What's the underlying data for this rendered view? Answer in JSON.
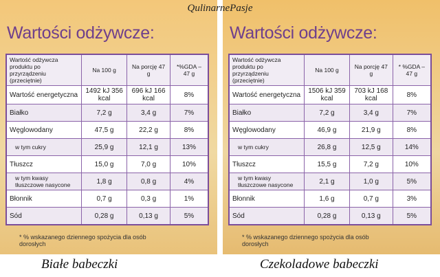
{
  "watermark": "QulinarnePasje",
  "panels": [
    {
      "heading": "Wartości odżywcze:",
      "table": {
        "header": [
          "Wartość odżywcza produktu po przyrządzeniu (przeciętnie)",
          "Na 100 g",
          "Na porcję 47 g",
          "*%GDA – 47 g"
        ],
        "rows": [
          [
            "Wartość energetyczna",
            "1492 kJ 356 kcal",
            "696 kJ 166 kcal",
            "8%"
          ],
          [
            "Białko",
            "7,2 g",
            "3,4 g",
            "7%"
          ],
          [
            "Węglowodany",
            "47,5 g",
            "22,2 g",
            "8%"
          ],
          [
            "w tym cukry",
            "25,9 g",
            "12,1 g",
            "13%"
          ],
          [
            "Tłuszcz",
            "15,0 g",
            "7,0 g",
            "10%"
          ],
          [
            "w tym kwasy tłuszczowe nasycone",
            "1,8 g",
            "0,8 g",
            "4%"
          ],
          [
            "Błonnik",
            "0,7 g",
            "0,3 g",
            "1%"
          ],
          [
            "Sód",
            "0,28 g",
            "0,13 g",
            "5%"
          ]
        ]
      },
      "footnote": "* % wskazanego dziennego spożycia dla osób dorosłych",
      "caption": "Białe babeczki"
    },
    {
      "heading": "Wartości odżywcze:",
      "table": {
        "header": [
          "Wartość odżywcza produktu po przyrządzeniu (przeciętnie)",
          "Na 100 g",
          "Na porcję 47 g",
          "* %GDA – 47 g"
        ],
        "rows": [
          [
            "Wartość energetyczna",
            "1506 kJ 359 kcal",
            "703 kJ 168 kcal",
            "8%"
          ],
          [
            "Białko",
            "7,2 g",
            "3,4 g",
            "7%"
          ],
          [
            "Węglowodany",
            "46,9 g",
            "21,9 g",
            "8%"
          ],
          [
            "w tym cukry",
            "26,8 g",
            "12,5 g",
            "14%"
          ],
          [
            "Tłuszcz",
            "15,5 g",
            "7,2 g",
            "10%"
          ],
          [
            "w tym kwasy tłuszczowe nasycone",
            "2,1 g",
            "1,0 g",
            "5%"
          ],
          [
            "Błonnik",
            "1,6 g",
            "0,7 g",
            "3%"
          ],
          [
            "Sód",
            "0,28 g",
            "0,13 g",
            "5%"
          ]
        ]
      },
      "footnote": "* % wskazanego dziennego spożycia dla osób dorosłych",
      "caption": "Czekoladowe babeczki"
    }
  ]
}
